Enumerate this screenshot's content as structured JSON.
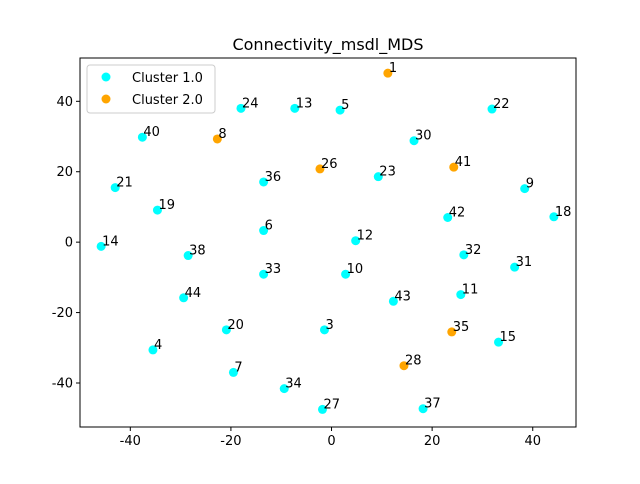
{
  "chart_data": {
    "type": "scatter",
    "title": "Connectivity_msdl_MDS",
    "xlabel": "",
    "ylabel": "",
    "xlim": [
      -50,
      48.6
    ],
    "ylim": [
      -52.5,
      52.3
    ],
    "xticks": [
      -40,
      -20,
      0,
      20,
      40
    ],
    "yticks": [
      -40,
      -20,
      0,
      20,
      40
    ],
    "grid": false,
    "legend_position": "top-left",
    "series": [
      {
        "name": "Cluster 1.0",
        "color": "#00ffff",
        "points": [
          {
            "label": "24",
            "x": -18.0,
            "y": 38.0
          },
          {
            "label": "13",
            "x": -7.3,
            "y": 38.0
          },
          {
            "label": "5",
            "x": 1.7,
            "y": 37.5
          },
          {
            "label": "22",
            "x": 31.9,
            "y": 37.8
          },
          {
            "label": "40",
            "x": -37.6,
            "y": 29.8
          },
          {
            "label": "30",
            "x": 16.4,
            "y": 28.8
          },
          {
            "label": "21",
            "x": -43.0,
            "y": 15.5
          },
          {
            "label": "36",
            "x": -13.5,
            "y": 17.1
          },
          {
            "label": "23",
            "x": 9.3,
            "y": 18.6
          },
          {
            "label": "9",
            "x": 38.4,
            "y": 15.2
          },
          {
            "label": "19",
            "x": -34.6,
            "y": 9.1
          },
          {
            "label": "42",
            "x": 23.1,
            "y": 7.0
          },
          {
            "label": "18",
            "x": 44.2,
            "y": 7.2
          },
          {
            "label": "14",
            "x": -45.8,
            "y": -1.2
          },
          {
            "label": "6",
            "x": -13.5,
            "y": 3.3
          },
          {
            "label": "12",
            "x": 4.8,
            "y": 0.4
          },
          {
            "label": "38",
            "x": -28.5,
            "y": -3.8
          },
          {
            "label": "32",
            "x": 26.3,
            "y": -3.6
          },
          {
            "label": "31",
            "x": 36.4,
            "y": -7.1
          },
          {
            "label": "33",
            "x": -13.5,
            "y": -9.1
          },
          {
            "label": "10",
            "x": 2.8,
            "y": -9.1
          },
          {
            "label": "44",
            "x": -29.4,
            "y": -15.8
          },
          {
            "label": "11",
            "x": 25.7,
            "y": -14.9
          },
          {
            "label": "43",
            "x": 12.3,
            "y": -16.8
          },
          {
            "label": "20",
            "x": -20.9,
            "y": -24.9
          },
          {
            "label": "3",
            "x": -1.4,
            "y": -24.9
          },
          {
            "label": "15",
            "x": 33.2,
            "y": -28.4
          },
          {
            "label": "4",
            "x": -35.5,
            "y": -30.6
          },
          {
            "label": "7",
            "x": -19.5,
            "y": -37.0
          },
          {
            "label": "34",
            "x": -9.4,
            "y": -41.6
          },
          {
            "label": "27",
            "x": -1.8,
            "y": -47.5
          },
          {
            "label": "37",
            "x": 18.2,
            "y": -47.3
          }
        ]
      },
      {
        "name": "Cluster 2.0",
        "color": "#ffa500",
        "points": [
          {
            "label": "1",
            "x": 11.2,
            "y": 48.0
          },
          {
            "label": "8",
            "x": -22.7,
            "y": 29.3
          },
          {
            "label": "26",
            "x": -2.3,
            "y": 20.8
          },
          {
            "label": "41",
            "x": 24.3,
            "y": 21.3
          },
          {
            "label": "35",
            "x": 23.9,
            "y": -25.5
          },
          {
            "label": "28",
            "x": 14.4,
            "y": -35.1
          }
        ]
      }
    ]
  }
}
